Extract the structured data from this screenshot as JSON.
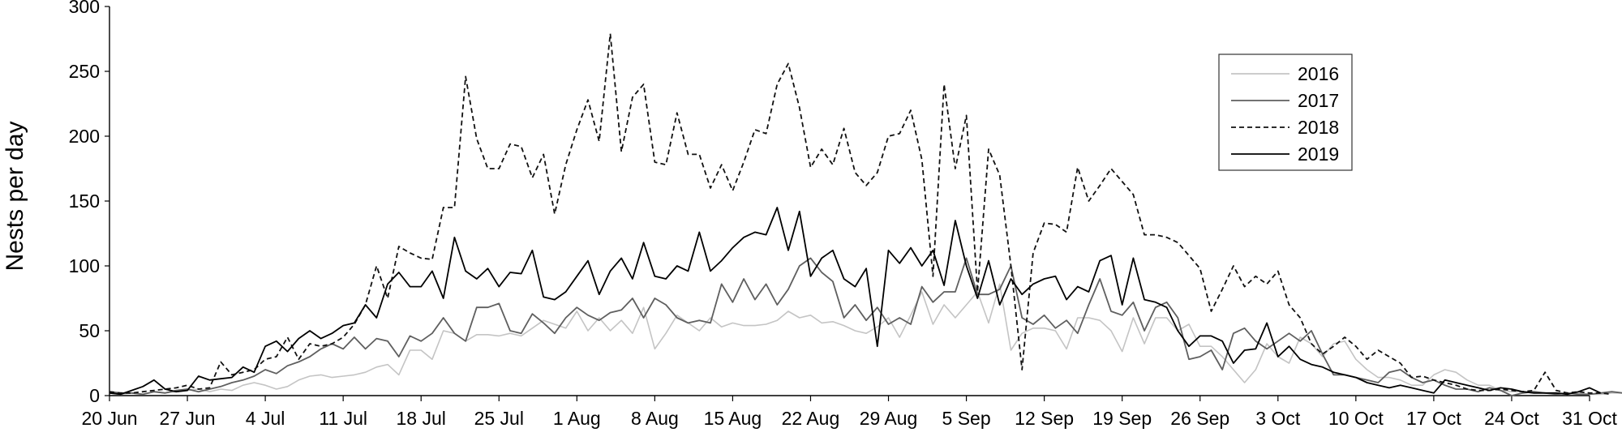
{
  "chart_data": {
    "type": "line",
    "title": "",
    "xlabel": "",
    "ylabel": "Nests per day",
    "ylim": [
      0,
      300
    ],
    "yticks": [
      0,
      50,
      100,
      150,
      200,
      250,
      300
    ],
    "x_start": "20 Jun",
    "x_end": "31 Oct",
    "xticks": [
      "20 Jun",
      "27 Jun",
      "4 Jul",
      "11 Jul",
      "18 Jul",
      "25 Jul",
      "1 Aug",
      "8 Aug",
      "15 Aug",
      "22 Aug",
      "29 Aug",
      "5 Sep",
      "12 Sep",
      "19 Sep",
      "26 Sep",
      "3 Oct",
      "10 Oct",
      "17 Oct",
      "24 Oct",
      "31 Oct"
    ],
    "grid": false,
    "legend_position": "top-right",
    "series": [
      {
        "name": "2016",
        "color": "#c4c4c4",
        "dash": "solid",
        "values": [
          2,
          1,
          2,
          1,
          3,
          2,
          3,
          4,
          5,
          3,
          5,
          4,
          8,
          10,
          8,
          5,
          7,
          12,
          15,
          16,
          14,
          15,
          16,
          18,
          22,
          24,
          16,
          35,
          35,
          28,
          50,
          48,
          42,
          47,
          47,
          46,
          48,
          46,
          52,
          58,
          55,
          52,
          65,
          50,
          60,
          50,
          58,
          48,
          68,
          36,
          48,
          62,
          56,
          50,
          60,
          53,
          56,
          54,
          54,
          55,
          58,
          65,
          60,
          62,
          56,
          57,
          54,
          50,
          48,
          53,
          60,
          45,
          62,
          80,
          55,
          70,
          60,
          70,
          80,
          56,
          86,
          35,
          48,
          52,
          52,
          50,
          36,
          60,
          60,
          58,
          50,
          34,
          60,
          40,
          60,
          60,
          50,
          55,
          38,
          38,
          30,
          20,
          10,
          20,
          40,
          30,
          25,
          45,
          40,
          30,
          40,
          42,
          28,
          20,
          14,
          14,
          12,
          8,
          8,
          16,
          20,
          18,
          12,
          8,
          8,
          4,
          3,
          3,
          3,
          2,
          2,
          2,
          2,
          1,
          1,
          2,
          2,
          1,
          1,
          1,
          2,
          2,
          2,
          1,
          1
        ]
      },
      {
        "name": "2017",
        "color": "#5f5f5f",
        "dash": "solid",
        "values": [
          3,
          2,
          2,
          1,
          3,
          2,
          4,
          5,
          3,
          5,
          7,
          10,
          12,
          15,
          20,
          17,
          23,
          26,
          30,
          36,
          40,
          36,
          45,
          36,
          44,
          42,
          30,
          46,
          42,
          48,
          60,
          48,
          42,
          68,
          68,
          71,
          50,
          48,
          63,
          56,
          48,
          60,
          68,
          62,
          58,
          64,
          66,
          75,
          60,
          75,
          70,
          60,
          56,
          58,
          56,
          86,
          72,
          90,
          74,
          86,
          70,
          82,
          100,
          106,
          95,
          88,
          60,
          70,
          58,
          68,
          55,
          60,
          55,
          84,
          72,
          80,
          80,
          106,
          78,
          78,
          82,
          100,
          60,
          55,
          62,
          52,
          58,
          48,
          70,
          90,
          65,
          62,
          72,
          50,
          68,
          72,
          60,
          28,
          30,
          35,
          20,
          48,
          52,
          42,
          36,
          42,
          48,
          42,
          50,
          32,
          16,
          16,
          14,
          12,
          10,
          18,
          20,
          14,
          10,
          12,
          8,
          5,
          5,
          3,
          6,
          4,
          0,
          2,
          3,
          2,
          1,
          2,
          1,
          1,
          2,
          3,
          2,
          2,
          2,
          1,
          1
        ]
      },
      {
        "name": "2018",
        "color": "#111111",
        "dash": "dashed",
        "values": [
          3,
          2,
          2,
          3,
          4,
          5,
          6,
          8,
          5,
          6,
          26,
          16,
          18,
          20,
          28,
          30,
          45,
          28,
          40,
          38,
          40,
          45,
          55,
          70,
          100,
          75,
          115,
          110,
          106,
          105,
          145,
          145,
          246,
          198,
          175,
          175,
          194,
          192,
          168,
          186,
          140,
          178,
          205,
          228,
          196,
          279,
          188,
          230,
          240,
          180,
          178,
          218,
          186,
          186,
          160,
          178,
          158,
          180,
          205,
          202,
          240,
          256,
          222,
          176,
          190,
          178,
          206,
          172,
          162,
          172,
          200,
          202,
          220,
          182,
          92,
          240,
          175,
          216,
          80,
          190,
          170,
          100,
          20,
          110,
          133,
          132,
          126,
          176,
          150,
          162,
          175,
          165,
          155,
          124,
          124,
          122,
          118,
          108,
          98,
          65,
          82,
          100,
          84,
          92,
          86,
          96,
          70,
          60,
          40,
          32,
          38,
          45,
          38,
          28,
          35,
          30,
          25,
          14,
          15,
          12,
          10,
          8,
          5,
          4,
          4,
          5,
          4,
          3,
          4,
          18,
          4,
          2,
          3,
          2,
          2,
          1
        ]
      },
      {
        "name": "2019",
        "color": "#000000",
        "dash": "solid",
        "values": [
          2,
          1,
          4,
          7,
          12,
          5,
          3,
          4,
          15,
          12,
          13,
          14,
          22,
          18,
          38,
          42,
          34,
          44,
          50,
          44,
          48,
          54,
          56,
          70,
          60,
          86,
          95,
          84,
          84,
          96,
          75,
          122,
          96,
          90,
          98,
          84,
          95,
          94,
          112,
          76,
          74,
          80,
          92,
          104,
          78,
          96,
          106,
          90,
          118,
          92,
          90,
          100,
          96,
          126,
          96,
          104,
          114,
          122,
          126,
          124,
          145,
          112,
          142,
          92,
          106,
          112,
          90,
          84,
          98,
          38,
          112,
          102,
          114,
          100,
          112,
          85,
          135,
          100,
          75,
          104,
          70,
          90,
          78,
          86,
          90,
          92,
          74,
          84,
          80,
          104,
          108,
          70,
          106,
          74,
          72,
          68,
          50,
          38,
          46,
          46,
          42,
          25,
          35,
          36,
          56,
          30,
          38,
          28,
          24,
          22,
          18,
          16,
          14,
          10,
          8,
          6,
          8,
          6,
          4,
          2,
          12,
          10,
          8,
          6,
          4,
          6,
          5,
          3,
          2,
          2,
          2,
          1,
          3,
          6,
          2
        ]
      }
    ]
  }
}
